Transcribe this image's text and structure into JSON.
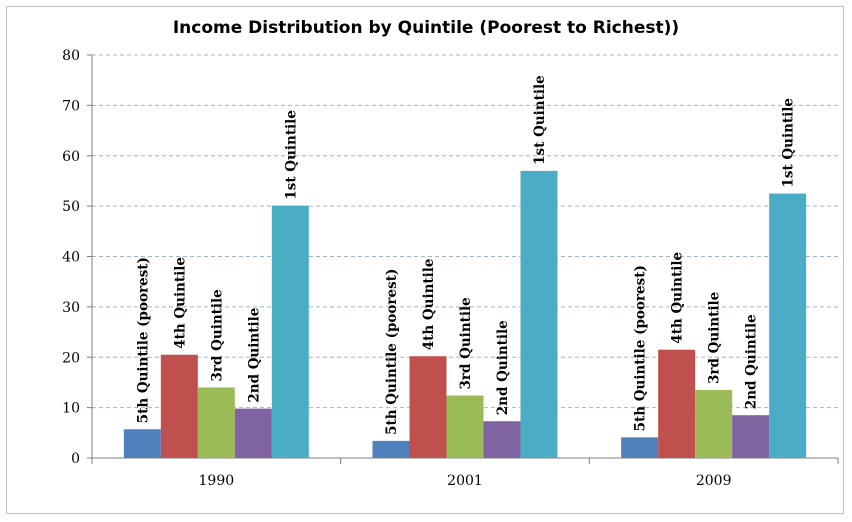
{
  "chart_data": {
    "type": "bar",
    "title": "Income Distribution by Quintile (Poorest to Richest))",
    "xlabel": "",
    "ylabel": "",
    "ylim": [
      0,
      80
    ],
    "yticks": [
      0,
      10,
      20,
      30,
      40,
      50,
      60,
      70,
      80
    ],
    "grid": true,
    "categories": [
      "1990",
      "2001",
      "2009"
    ],
    "series": [
      {
        "name": "5th Quintile (poorest)",
        "color": "#4f81bd",
        "values": [
          5.7,
          3.4,
          4.1
        ]
      },
      {
        "name": "4th Quintile",
        "color": "#c0504d",
        "values": [
          20.5,
          20.2,
          21.5
        ]
      },
      {
        "name": "3rd Quintile",
        "color": "#9bbb59",
        "values": [
          14.0,
          12.4,
          13.5
        ]
      },
      {
        "name": "2nd Quintile",
        "color": "#8064a2",
        "values": [
          9.8,
          7.3,
          8.5
        ]
      },
      {
        "name": "1st Quintile",
        "color": "#4bacc6",
        "values": [
          50.1,
          57.0,
          52.5
        ]
      }
    ]
  }
}
